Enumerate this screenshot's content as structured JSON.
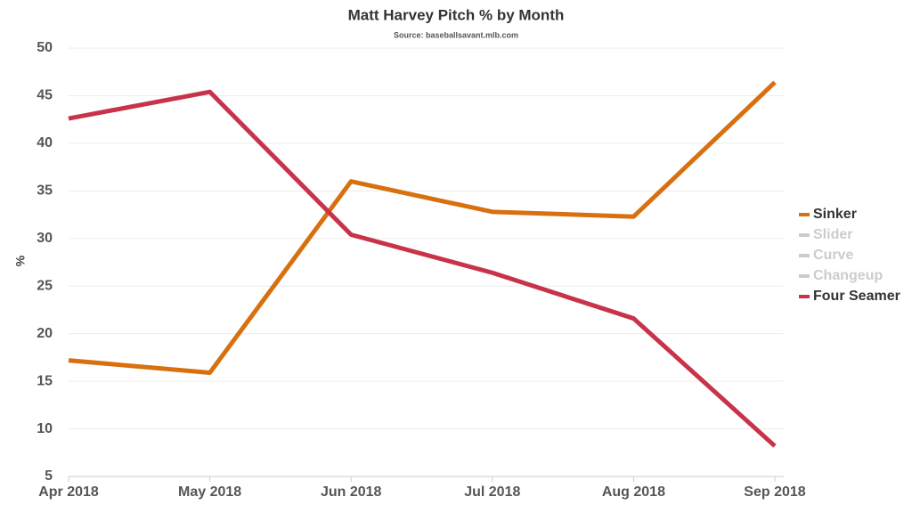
{
  "chart_data": {
    "type": "line",
    "title": "Matt Harvey Pitch % by Month",
    "subtitle": "Source: baseballsavant.mlb.com",
    "y_label": "%",
    "categories": [
      "Apr 2018",
      "May 2018",
      "Jun 2018",
      "Jul 2018",
      "Aug 2018",
      "Sep 2018"
    ],
    "series": [
      {
        "name": "Sinker",
        "color": "#d8700f",
        "values": [
          17.2,
          15.9,
          36.0,
          32.8,
          32.3,
          46.4
        ]
      },
      {
        "name": "Slider",
        "color": "#cccccc",
        "visible": false,
        "values": [
          null,
          null,
          null,
          null,
          null,
          null
        ]
      },
      {
        "name": "Curve",
        "color": "#cccccc",
        "visible": false,
        "values": [
          null,
          null,
          null,
          null,
          null,
          null
        ]
      },
      {
        "name": "Changeup",
        "color": "#cccccc",
        "visible": false,
        "values": [
          null,
          null,
          null,
          null,
          null,
          null
        ]
      },
      {
        "name": "Four Seamer",
        "color": "#c8334a",
        "values": [
          42.6,
          45.4,
          30.4,
          26.4,
          21.6,
          8.2
        ]
      }
    ],
    "ylim": [
      5,
      50
    ],
    "yticks": [
      5,
      10,
      15,
      20,
      25,
      30,
      35,
      40,
      45,
      50
    ],
    "grid": true,
    "legend": "right"
  }
}
